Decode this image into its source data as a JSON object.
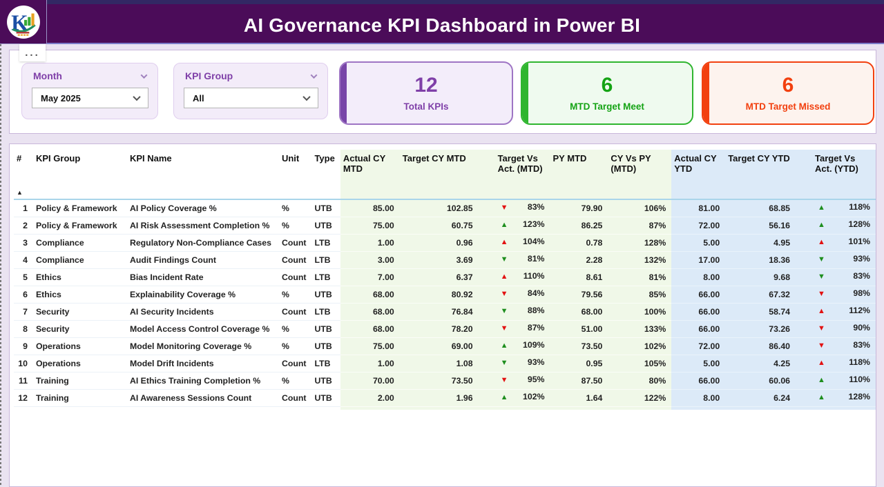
{
  "page": {
    "title": "AI Governance KPI Dashboard in Power BI"
  },
  "options_menu": "...",
  "filters": {
    "month": {
      "label": "Month",
      "value": "May 2025"
    },
    "kpi_group": {
      "label": "KPI Group",
      "value": "All"
    }
  },
  "cards": [
    {
      "value": "12",
      "label": "Total KPIs",
      "theme": "purple"
    },
    {
      "value": "6",
      "label": "MTD Target Meet",
      "theme": "green"
    },
    {
      "value": "6",
      "label": "MTD Target Missed",
      "theme": "red"
    }
  ],
  "colors": {
    "header_bg": "#4B0C59",
    "page_bg": "#EAE3F1",
    "accent_purple": "#7F3FA8",
    "accent_green": "#2FB52F",
    "accent_red": "#F2400F",
    "mtd_section_bg": "#F0F8E8",
    "ytd_section_bg": "#DCEAF8",
    "arrow_green": "#1E8E1E",
    "arrow_red": "#E21212"
  },
  "table": {
    "sort_indicator": "▲",
    "columns": [
      {
        "label": "#"
      },
      {
        "label": "KPI Group"
      },
      {
        "label": "KPI Name"
      },
      {
        "label": "Unit"
      },
      {
        "label": "Type"
      },
      {
        "label": "Actual CY MTD"
      },
      {
        "label": "Target CY MTD"
      },
      {
        "label": "Target Vs Act. (MTD)"
      },
      {
        "label": "PY MTD"
      },
      {
        "label": "CY Vs PY (MTD)"
      },
      {
        "label": "Actual CY YTD"
      },
      {
        "label": "Target CY YTD"
      },
      {
        "label": "Target Vs Act. (YTD)"
      }
    ],
    "rows": [
      {
        "idx": "1",
        "group": "Policy & Framework",
        "name": "AI Policy Coverage %",
        "unit": "%",
        "type": "UTB",
        "actual_mtd": "85.00",
        "target_mtd": "102.85",
        "tva_mtd": {
          "arrow": "down",
          "color": "red",
          "value": "83%"
        },
        "py_mtd": "79.90",
        "cy_vs_py": "106%",
        "actual_ytd": "81.00",
        "target_ytd": "68.85",
        "tva_ytd": {
          "arrow": "up",
          "color": "green",
          "value": "118%"
        }
      },
      {
        "idx": "2",
        "group": "Policy & Framework",
        "name": "AI Risk Assessment Completion %",
        "unit": "%",
        "type": "UTB",
        "actual_mtd": "75.00",
        "target_mtd": "60.75",
        "tva_mtd": {
          "arrow": "up",
          "color": "green",
          "value": "123%"
        },
        "py_mtd": "86.25",
        "cy_vs_py": "87%",
        "actual_ytd": "72.00",
        "target_ytd": "56.16",
        "tva_ytd": {
          "arrow": "up",
          "color": "green",
          "value": "128%"
        }
      },
      {
        "idx": "3",
        "group": "Compliance",
        "name": "Regulatory Non-Compliance Cases",
        "unit": "Count",
        "type": "LTB",
        "actual_mtd": "1.00",
        "target_mtd": "0.96",
        "tva_mtd": {
          "arrow": "up",
          "color": "red",
          "value": "104%"
        },
        "py_mtd": "0.78",
        "cy_vs_py": "128%",
        "actual_ytd": "5.00",
        "target_ytd": "4.95",
        "tva_ytd": {
          "arrow": "up",
          "color": "red",
          "value": "101%"
        }
      },
      {
        "idx": "4",
        "group": "Compliance",
        "name": "Audit Findings Count",
        "unit": "Count",
        "type": "LTB",
        "actual_mtd": "3.00",
        "target_mtd": "3.69",
        "tva_mtd": {
          "arrow": "down",
          "color": "green",
          "value": "81%"
        },
        "py_mtd": "2.28",
        "cy_vs_py": "132%",
        "actual_ytd": "17.00",
        "target_ytd": "18.36",
        "tva_ytd": {
          "arrow": "down",
          "color": "green",
          "value": "93%"
        }
      },
      {
        "idx": "5",
        "group": "Ethics",
        "name": "Bias Incident Rate",
        "unit": "Count",
        "type": "LTB",
        "actual_mtd": "7.00",
        "target_mtd": "6.37",
        "tva_mtd": {
          "arrow": "up",
          "color": "red",
          "value": "110%"
        },
        "py_mtd": "8.61",
        "cy_vs_py": "81%",
        "actual_ytd": "8.00",
        "target_ytd": "9.68",
        "tva_ytd": {
          "arrow": "down",
          "color": "green",
          "value": "83%"
        }
      },
      {
        "idx": "6",
        "group": "Ethics",
        "name": "Explainability Coverage %",
        "unit": "%",
        "type": "UTB",
        "actual_mtd": "68.00",
        "target_mtd": "80.92",
        "tva_mtd": {
          "arrow": "down",
          "color": "red",
          "value": "84%"
        },
        "py_mtd": "79.56",
        "cy_vs_py": "85%",
        "actual_ytd": "66.00",
        "target_ytd": "67.32",
        "tva_ytd": {
          "arrow": "down",
          "color": "red",
          "value": "98%"
        }
      },
      {
        "idx": "7",
        "group": "Security",
        "name": "AI Security Incidents",
        "unit": "Count",
        "type": "LTB",
        "actual_mtd": "68.00",
        "target_mtd": "76.84",
        "tva_mtd": {
          "arrow": "down",
          "color": "green",
          "value": "88%"
        },
        "py_mtd": "68.00",
        "cy_vs_py": "100%",
        "actual_ytd": "66.00",
        "target_ytd": "58.74",
        "tva_ytd": {
          "arrow": "up",
          "color": "red",
          "value": "112%"
        }
      },
      {
        "idx": "8",
        "group": "Security",
        "name": "Model Access Control Coverage %",
        "unit": "%",
        "type": "UTB",
        "actual_mtd": "68.00",
        "target_mtd": "78.20",
        "tva_mtd": {
          "arrow": "down",
          "color": "red",
          "value": "87%"
        },
        "py_mtd": "51.00",
        "cy_vs_py": "133%",
        "actual_ytd": "66.00",
        "target_ytd": "73.26",
        "tva_ytd": {
          "arrow": "down",
          "color": "red",
          "value": "90%"
        }
      },
      {
        "idx": "9",
        "group": "Operations",
        "name": "Model Monitoring Coverage %",
        "unit": "%",
        "type": "UTB",
        "actual_mtd": "75.00",
        "target_mtd": "69.00",
        "tva_mtd": {
          "arrow": "up",
          "color": "green",
          "value": "109%"
        },
        "py_mtd": "73.50",
        "cy_vs_py": "102%",
        "actual_ytd": "72.00",
        "target_ytd": "86.40",
        "tva_ytd": {
          "arrow": "down",
          "color": "red",
          "value": "83%"
        }
      },
      {
        "idx": "10",
        "group": "Operations",
        "name": "Model Drift Incidents",
        "unit": "Count",
        "type": "LTB",
        "actual_mtd": "1.00",
        "target_mtd": "1.08",
        "tva_mtd": {
          "arrow": "down",
          "color": "green",
          "value": "93%"
        },
        "py_mtd": "0.95",
        "cy_vs_py": "105%",
        "actual_ytd": "5.00",
        "target_ytd": "4.25",
        "tva_ytd": {
          "arrow": "up",
          "color": "red",
          "value": "118%"
        }
      },
      {
        "idx": "11",
        "group": "Training",
        "name": "AI Ethics Training Completion %",
        "unit": "%",
        "type": "UTB",
        "actual_mtd": "70.00",
        "target_mtd": "73.50",
        "tva_mtd": {
          "arrow": "down",
          "color": "red",
          "value": "95%"
        },
        "py_mtd": "87.50",
        "cy_vs_py": "80%",
        "actual_ytd": "66.00",
        "target_ytd": "60.06",
        "tva_ytd": {
          "arrow": "up",
          "color": "green",
          "value": "110%"
        }
      },
      {
        "idx": "12",
        "group": "Training",
        "name": "AI Awareness Sessions Count",
        "unit": "Count",
        "type": "UTB",
        "actual_mtd": "2.00",
        "target_mtd": "1.96",
        "tva_mtd": {
          "arrow": "up",
          "color": "green",
          "value": "102%"
        },
        "py_mtd": "1.64",
        "cy_vs_py": "122%",
        "actual_ytd": "8.00",
        "target_ytd": "6.24",
        "tva_ytd": {
          "arrow": "up",
          "color": "green",
          "value": "128%"
        }
      }
    ]
  }
}
